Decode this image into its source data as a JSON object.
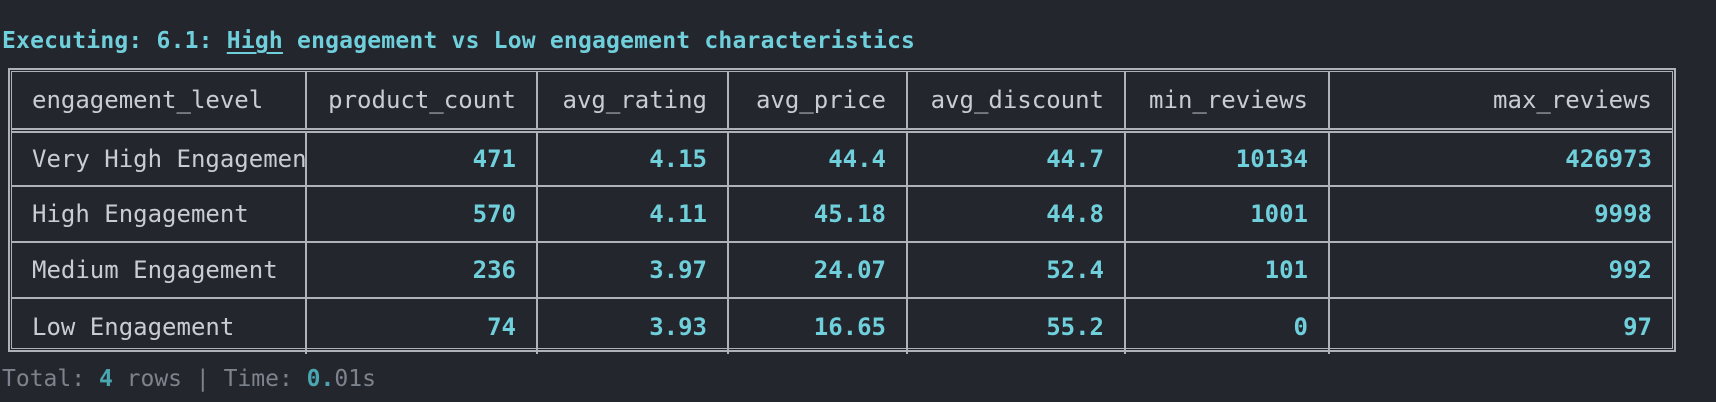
{
  "execution": {
    "prefix": "Executing: 6.1: ",
    "underlined_word": "High",
    "rest": " engagement vs Low engagement characteristics"
  },
  "table": {
    "columns": [
      "engagement_level",
      "product_count",
      "avg_rating",
      "avg_price",
      "avg_discount",
      "min_reviews",
      "max_reviews"
    ],
    "rows": [
      [
        "Very High Engagement",
        "471",
        "4.15",
        "44.4",
        "44.7",
        "10134",
        "426973"
      ],
      [
        "High Engagement",
        "570",
        "4.11",
        "45.18",
        "44.8",
        "1001",
        "9998"
      ],
      [
        "Medium Engagement",
        "236",
        "3.97",
        "24.07",
        "52.4",
        "101",
        "992"
      ],
      [
        "Low Engagement",
        "74",
        "3.93",
        "16.65",
        "55.2",
        "0",
        "97"
      ]
    ]
  },
  "footer": {
    "total_label": "Total: ",
    "row_count": "4",
    "rows_label": " rows | Time: ",
    "time_value": "0.",
    "time_rest": "01s"
  },
  "colors": {
    "background": "#24262e",
    "accent": "#6fd0dc",
    "text": "#c9cdd3",
    "muted": "#7d838c"
  }
}
